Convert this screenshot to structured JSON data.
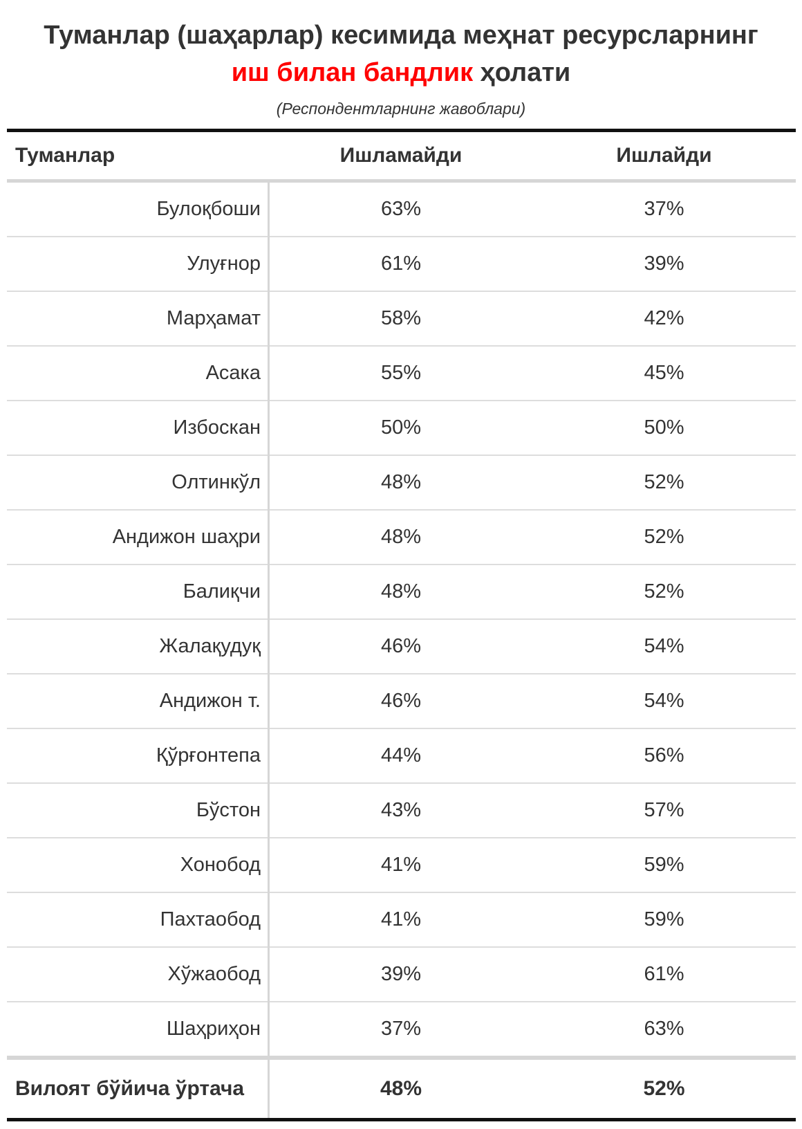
{
  "chart_data": {
    "type": "table",
    "title_part1": "Туманлар (шаҳарлар) кесимида меҳнат ресурсларнинг",
    "title_part2_highlight": "иш билан бандлик",
    "title_part2_rest": " ҳолати",
    "subtitle": "(Респондентларнинг жавоблари)",
    "columns": [
      "Туманлар",
      "Ишламайди",
      "Ишлайди"
    ],
    "rows": [
      {
        "name": "Булоқбоши",
        "not_working": "63%",
        "working": "37%"
      },
      {
        "name": "Улуғнор",
        "not_working": "61%",
        "working": "39%"
      },
      {
        "name": "Марҳамат",
        "not_working": "58%",
        "working": "42%"
      },
      {
        "name": "Асака",
        "not_working": "55%",
        "working": "45%"
      },
      {
        "name": "Избоскан",
        "not_working": "50%",
        "working": "50%"
      },
      {
        "name": "Олтинкўл",
        "not_working": "48%",
        "working": "52%"
      },
      {
        "name": "Андижон шаҳри",
        "not_working": "48%",
        "working": "52%"
      },
      {
        "name": "Балиқчи",
        "not_working": "48%",
        "working": "52%"
      },
      {
        "name": "Жалақудуқ",
        "not_working": "46%",
        "working": "54%"
      },
      {
        "name": "Андижон т.",
        "not_working": "46%",
        "working": "54%"
      },
      {
        "name": "Қўрғонтепа",
        "not_working": "44%",
        "working": "56%"
      },
      {
        "name": "Бўстон",
        "not_working": "43%",
        "working": "57%"
      },
      {
        "name": "Хонобод",
        "not_working": "41%",
        "working": "59%"
      },
      {
        "name": "Пахтаобод",
        "not_working": "41%",
        "working": "59%"
      },
      {
        "name": "Хўжаобод",
        "not_working": "39%",
        "working": "61%"
      },
      {
        "name": "Шаҳриҳон",
        "not_working": "37%",
        "working": "63%"
      }
    ],
    "total": {
      "name": "Вилоят бўйича ўртача",
      "not_working": "48%",
      "working": "52%"
    }
  },
  "colors": {
    "highlight": "#ff0000",
    "text": "#333333"
  }
}
